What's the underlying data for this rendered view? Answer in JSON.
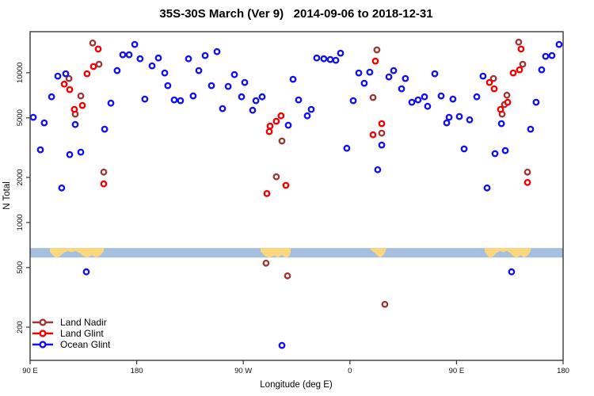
{
  "chart_data": {
    "type": "scatter",
    "title": "35S-30S March (Ver 9)   2014-09-06 to 2018-12-31",
    "xlabel": "Longitude (deg E)",
    "ylabel": "N Total",
    "x_axis": {
      "range_deg_along_axis": [
        0,
        450
      ],
      "start_longitude": "90 E",
      "ticks_deg": [
        0,
        90,
        180,
        270,
        360,
        450
      ],
      "tick_labels": [
        "90 E",
        "180",
        "90 W",
        "0",
        "90 E",
        "180"
      ]
    },
    "y_axis": {
      "scale": "log",
      "range": [
        120,
        18800
      ],
      "ticks": [
        200,
        500,
        1000,
        2000,
        5000,
        10000
      ],
      "tick_labels": [
        "200",
        "500",
        "1000",
        "2000",
        "5000",
        "10000"
      ]
    },
    "legend": {
      "position": "bottom-left",
      "entries": [
        "Land Nadir",
        "Land Glint",
        "Ocean Glint"
      ]
    },
    "series": [
      {
        "name": "Land Nadir",
        "color": "#a03636",
        "points": [
          [
            52.8,
            15800
          ],
          [
            58.2,
            11400
          ],
          [
            32.8,
            9150
          ],
          [
            42.8,
            7000
          ],
          [
            38.1,
            5290
          ],
          [
            62.2,
            2170
          ],
          [
            212.6,
            3500
          ],
          [
            207.9,
            2020
          ],
          [
            292.8,
            14200
          ],
          [
            289.5,
            6830
          ],
          [
            296.9,
            3950
          ],
          [
            412.5,
            16000
          ],
          [
            415.9,
            11400
          ],
          [
            391.2,
            9150
          ],
          [
            402.5,
            7080
          ],
          [
            400.5,
            6130
          ],
          [
            398.5,
            5290
          ],
          [
            419.9,
            2170
          ],
          [
            199.2,
            535
          ],
          [
            217.3,
            440
          ],
          [
            299.5,
            284
          ]
        ]
      },
      {
        "name": "Land Glint",
        "color": "#f40000",
        "points": [
          [
            57.5,
            14400
          ],
          [
            53.5,
            11000
          ],
          [
            48.1,
            9850
          ],
          [
            28.8,
            8400
          ],
          [
            33.4,
            7720
          ],
          [
            44.1,
            6050
          ],
          [
            37.4,
            5690
          ],
          [
            62.2,
            1810
          ],
          [
            211.9,
            5160
          ],
          [
            207.9,
            4740
          ],
          [
            202.6,
            4400
          ],
          [
            201.9,
            4050
          ],
          [
            216.0,
            1770
          ],
          [
            199.9,
            1560
          ],
          [
            291.5,
            11960
          ],
          [
            296.9,
            4570
          ],
          [
            289.5,
            3850
          ],
          [
            414.5,
            14400
          ],
          [
            413.2,
            10460
          ],
          [
            407.9,
            9970
          ],
          [
            387.8,
            8610
          ],
          [
            391.8,
            7810
          ],
          [
            403.2,
            6350
          ],
          [
            397.2,
            5690
          ],
          [
            419.9,
            1850
          ]
        ]
      },
      {
        "name": "Ocean Glint",
        "color": "#1212ef",
        "points": [
          [
            23.4,
            9490
          ],
          [
            30.1,
            9850
          ],
          [
            18.1,
            6910
          ],
          [
            2.7,
            5040
          ],
          [
            12.0,
            4630
          ],
          [
            38.1,
            4510
          ],
          [
            8.7,
            3060
          ],
          [
            33.4,
            2840
          ],
          [
            42.8,
            2950
          ],
          [
            26.7,
            1700
          ],
          [
            73.5,
            10340
          ],
          [
            78.2,
            13190
          ],
          [
            83.6,
            13190
          ],
          [
            88.3,
            15450
          ],
          [
            92.9,
            12400
          ],
          [
            103.0,
            11120
          ],
          [
            108.3,
            12550
          ],
          [
            113.7,
            9970
          ],
          [
            116.3,
            8200
          ],
          [
            68.2,
            6270
          ],
          [
            96.9,
            6670
          ],
          [
            62.9,
            4200
          ],
          [
            133.7,
            12400
          ],
          [
            147.8,
            13030
          ],
          [
            157.8,
            13840
          ],
          [
            142.4,
            10340
          ],
          [
            121.7,
            6590
          ],
          [
            127.0,
            6510
          ],
          [
            137.7,
            7000
          ],
          [
            153.1,
            8200
          ],
          [
            167.2,
            8100
          ],
          [
            172.5,
            9720
          ],
          [
            181.2,
            8610
          ],
          [
            178.5,
            6910
          ],
          [
            162.5,
            5760
          ],
          [
            190.6,
            6510
          ],
          [
            195.9,
            6910
          ],
          [
            187.9,
            5620
          ],
          [
            218.0,
            4460
          ],
          [
            226.7,
            6590
          ],
          [
            222.0,
            9040
          ],
          [
            234.0,
            5160
          ],
          [
            237.4,
            5690
          ],
          [
            242.0,
            12550
          ],
          [
            248.0,
            12400
          ],
          [
            253.4,
            12260
          ],
          [
            258.1,
            12110
          ],
          [
            262.1,
            13510
          ],
          [
            277.5,
            9970
          ],
          [
            286.8,
            10090
          ],
          [
            282.1,
            8510
          ],
          [
            302.9,
            9380
          ],
          [
            306.9,
            10340
          ],
          [
            316.9,
            9150
          ],
          [
            313.6,
            7810
          ],
          [
            272.8,
            6510
          ],
          [
            322.3,
            6350
          ],
          [
            327.6,
            6590
          ],
          [
            333.0,
            6910
          ],
          [
            335.6,
            5970
          ],
          [
            267.4,
            3130
          ],
          [
            296.9,
            3290
          ],
          [
            293.5,
            2250
          ],
          [
            341.7,
            9850
          ],
          [
            347.0,
            7000
          ],
          [
            357.0,
            6670
          ],
          [
            377.1,
            6910
          ],
          [
            353.7,
            5040
          ],
          [
            362.4,
            5100
          ],
          [
            371.1,
            4850
          ],
          [
            351.7,
            4630
          ],
          [
            382.4,
            9490
          ],
          [
            427.2,
            6350
          ],
          [
            397.9,
            4570
          ],
          [
            422.5,
            4200
          ],
          [
            366.4,
            3100
          ],
          [
            392.5,
            2880
          ],
          [
            401.2,
            3020
          ],
          [
            385.8,
            1700
          ],
          [
            431.9,
            10460
          ],
          [
            435.2,
            12870
          ],
          [
            440.6,
            13030
          ],
          [
            446.6,
            15450
          ],
          [
            47.5,
            468
          ],
          [
            406.5,
            468
          ],
          [
            212.6,
            151
          ]
        ]
      }
    ],
    "map_band": {
      "description": "latitude-strip world map, ocean with land patches",
      "ocean_color": "#a7bfdf",
      "land_color": "#fbd77d",
      "n_range": [
        583,
        675
      ],
      "land_patches": [
        {
          "name": "australia",
          "x0_deg": 16.7,
          "x1_deg": 62.2,
          "shape": "australia"
        },
        {
          "name": "south-america",
          "x0_deg": 194.6,
          "x1_deg": 220.0,
          "shape": "smooth"
        },
        {
          "name": "southern-africa",
          "x0_deg": 287.5,
          "x1_deg": 300.9,
          "shape": "taper"
        },
        {
          "name": "australia-repeat",
          "x0_deg": 383.8,
          "x1_deg": 422.6,
          "shape": "australia"
        }
      ]
    },
    "marker": {
      "style": "open-circle",
      "radius": 3.2,
      "stroke_width": 2.4
    }
  }
}
